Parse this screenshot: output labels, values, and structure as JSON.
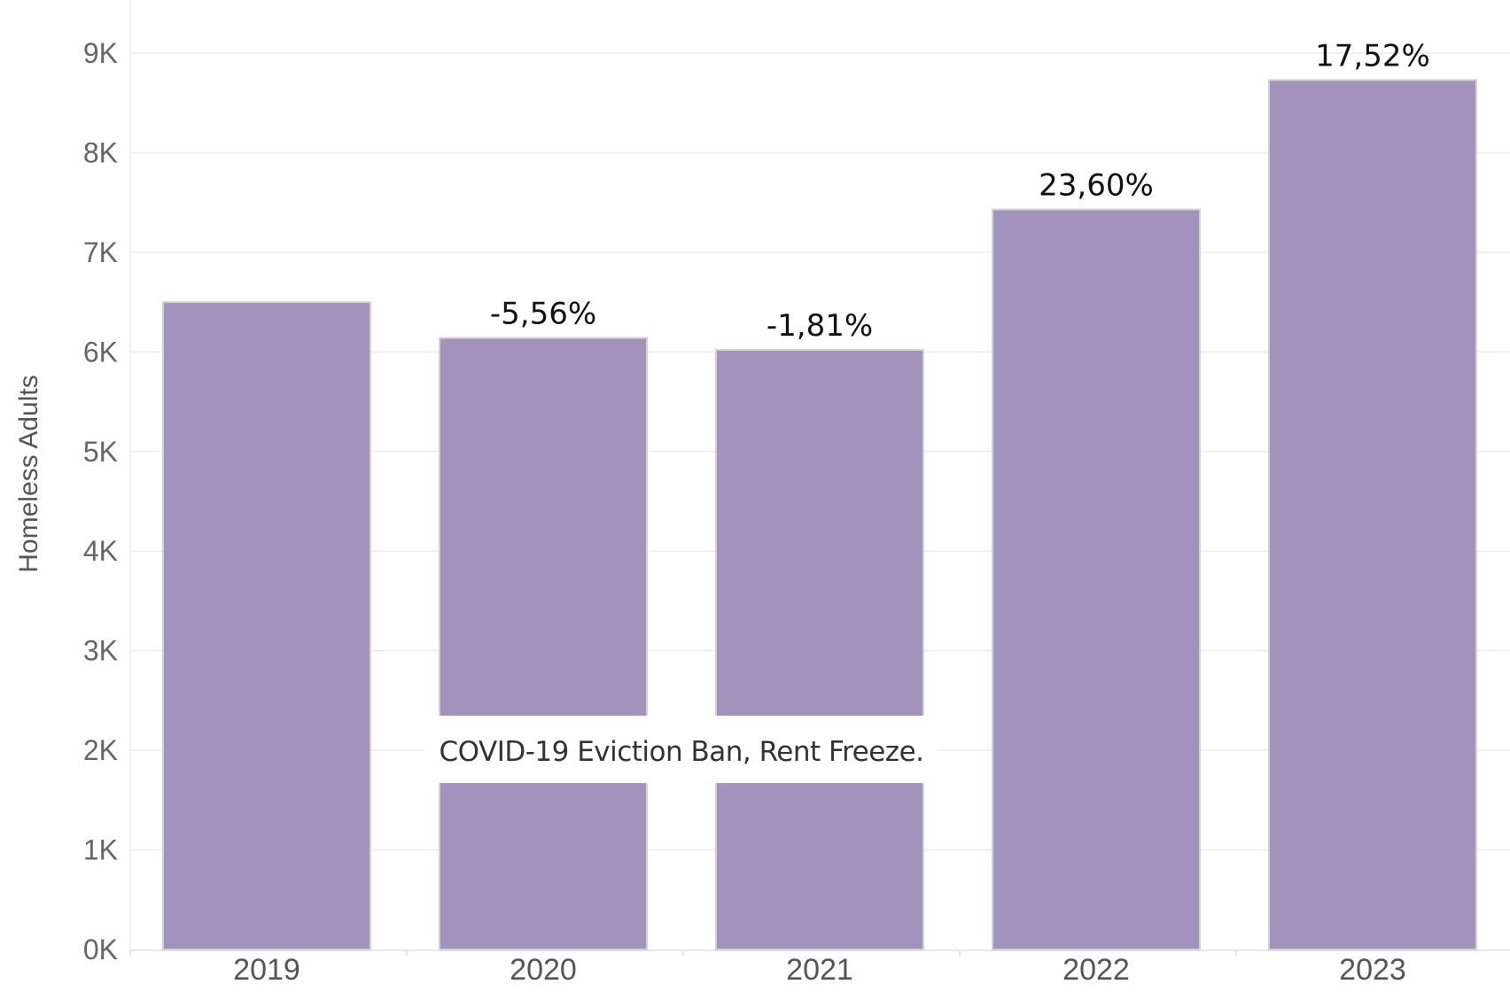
{
  "chart_data": {
    "type": "bar",
    "title": "",
    "xlabel": "",
    "ylabel": "Homeless Adults",
    "categories": [
      "2019",
      "2020",
      "2021",
      "2022",
      "2023"
    ],
    "values": [
      6500,
      6140,
      6020,
      7430,
      8730
    ],
    "data_labels": [
      "",
      "-5,56%",
      "-1,81%",
      "23,60%",
      "17,52%"
    ],
    "ylim": [
      0,
      9000
    ],
    "yticks": [
      0,
      1000,
      2000,
      3000,
      4000,
      5000,
      6000,
      7000,
      8000,
      9000
    ],
    "ytick_labels": [
      "0K",
      "1K",
      "2K",
      "3K",
      "4K",
      "5K",
      "6K",
      "7K",
      "8K",
      "9K"
    ],
    "grid": true,
    "bar_color": "#a292bc",
    "annotation": {
      "text": "COVID-19 Eviction Ban, Rent Freeze.",
      "spans_categories": [
        "2020",
        "2021"
      ],
      "at_value": 2000
    }
  }
}
